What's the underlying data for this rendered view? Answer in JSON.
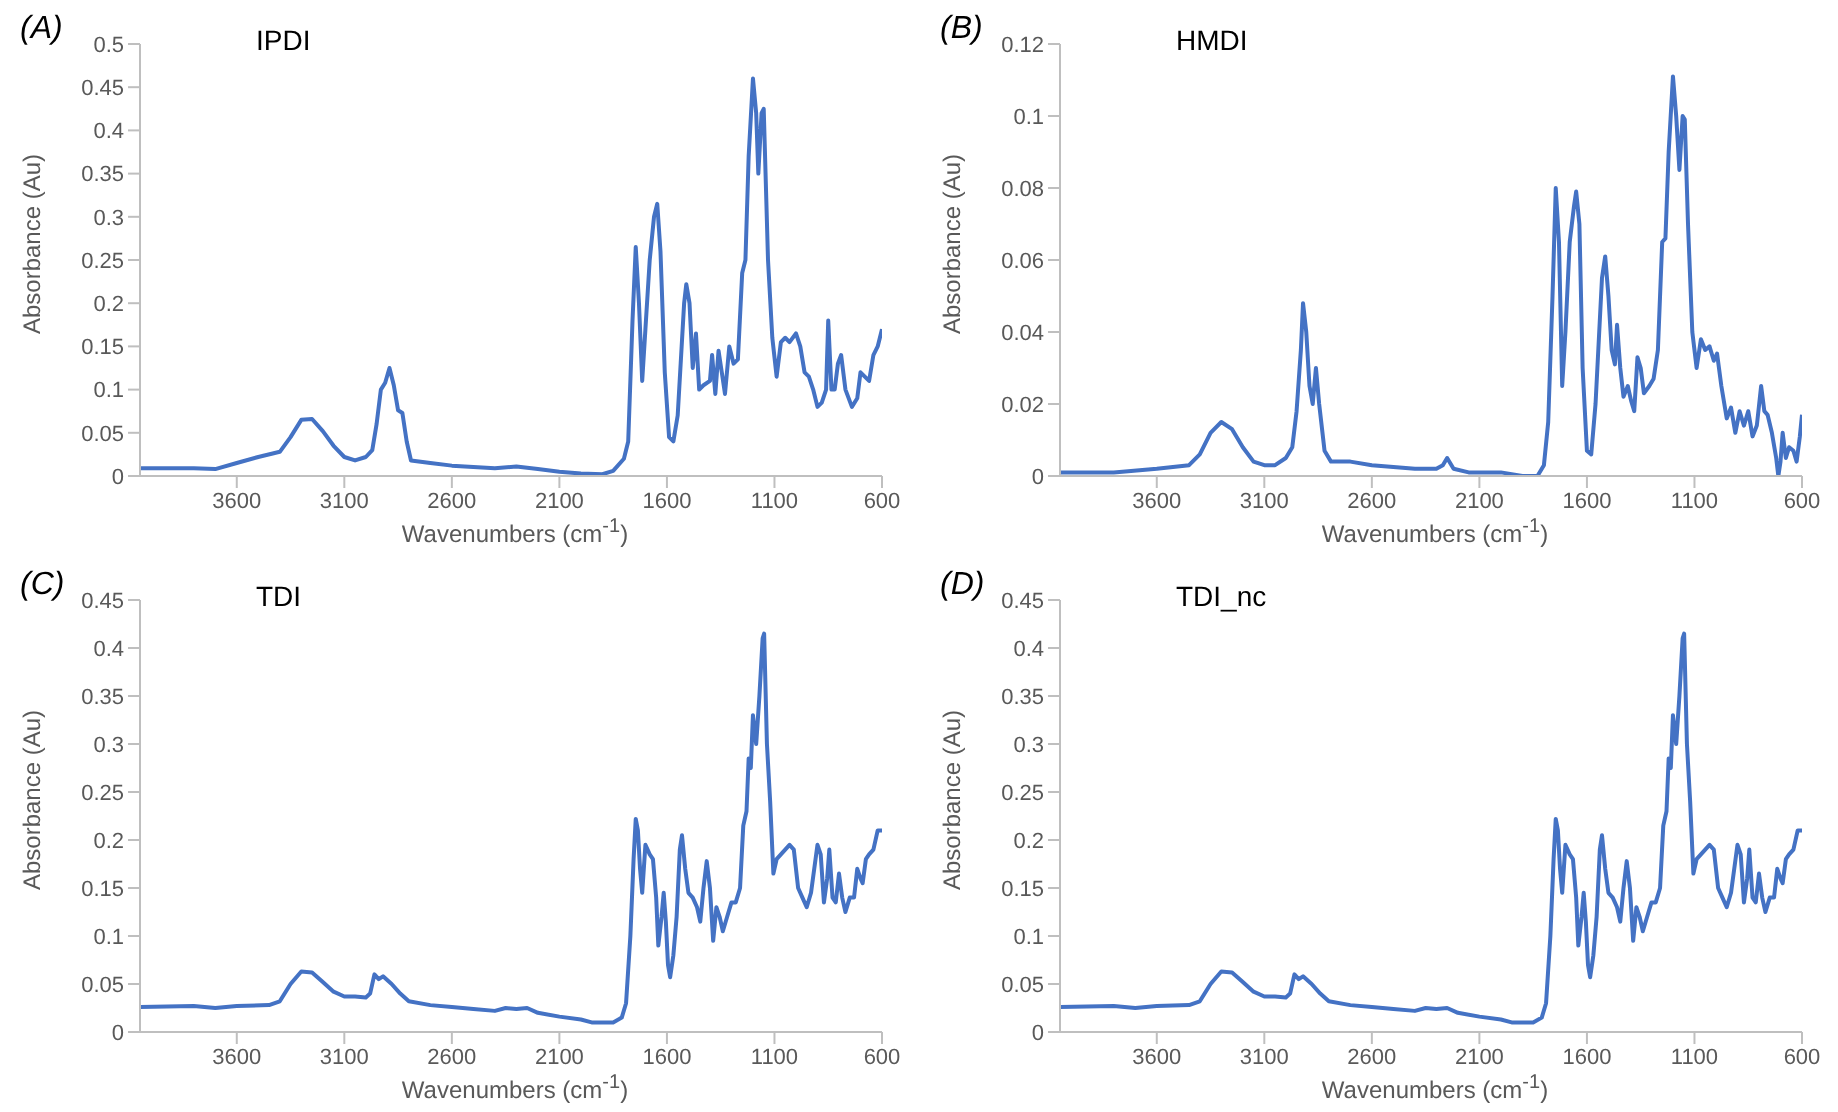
{
  "chart_data": [
    {
      "type": "line",
      "title": "(A)",
      "subtitle": "IPDI",
      "xlabel": "Wavenumbers (cm$^{-1}$)",
      "ylabel": "Absorbance (Au)",
      "xlim": [
        4050,
        600
      ],
      "xticks": [
        3600,
        3100,
        2600,
        2100,
        1600,
        1100,
        600
      ],
      "ylim": [
        0,
        0.5
      ],
      "yticks": [
        0,
        0.05,
        0.1,
        0.15,
        0.2,
        0.25,
        0.3,
        0.35,
        0.4,
        0.45,
        0.5
      ],
      "legend": false,
      "grid": false,
      "marker": "none",
      "x": [
        4050,
        3800,
        3700,
        3600,
        3500,
        3400,
        3350,
        3300,
        3250,
        3200,
        3150,
        3100,
        3050,
        3000,
        2970,
        2950,
        2930,
        2910,
        2890,
        2870,
        2850,
        2830,
        2810,
        2790,
        2700,
        2600,
        2400,
        2300,
        2200,
        2100,
        2000,
        1900,
        1850,
        1800,
        1780,
        1760,
        1745,
        1730,
        1715,
        1700,
        1680,
        1660,
        1645,
        1630,
        1610,
        1590,
        1570,
        1550,
        1520,
        1510,
        1495,
        1480,
        1465,
        1450,
        1430,
        1400,
        1390,
        1375,
        1360,
        1345,
        1330,
        1310,
        1290,
        1270,
        1250,
        1235,
        1220,
        1200,
        1185,
        1175,
        1160,
        1150,
        1130,
        1110,
        1090,
        1070,
        1050,
        1030,
        1000,
        980,
        960,
        940,
        920,
        900,
        880,
        860,
        850,
        835,
        820,
        805,
        790,
        770,
        740,
        715,
        700,
        680,
        660,
        640,
        620,
        600
      ],
      "series": [
        {
          "color": "#4472c4",
          "values": [
            0.009,
            0.009,
            0.008,
            0.015,
            0.022,
            0.028,
            0.045,
            0.065,
            0.066,
            0.052,
            0.035,
            0.022,
            0.018,
            0.022,
            0.03,
            0.06,
            0.1,
            0.108,
            0.125,
            0.105,
            0.076,
            0.073,
            0.04,
            0.018,
            0.015,
            0.012,
            0.009,
            0.011,
            0.008,
            0.005,
            0.003,
            0.002,
            0.006,
            0.02,
            0.04,
            0.18,
            0.265,
            0.2,
            0.11,
            0.17,
            0.25,
            0.3,
            0.315,
            0.26,
            0.12,
            0.045,
            0.04,
            0.07,
            0.2,
            0.222,
            0.2,
            0.125,
            0.165,
            0.1,
            0.105,
            0.11,
            0.14,
            0.095,
            0.145,
            0.12,
            0.095,
            0.15,
            0.13,
            0.135,
            0.235,
            0.25,
            0.37,
            0.46,
            0.42,
            0.35,
            0.42,
            0.425,
            0.25,
            0.16,
            0.115,
            0.155,
            0.16,
            0.155,
            0.165,
            0.15,
            0.12,
            0.115,
            0.1,
            0.08,
            0.085,
            0.1,
            0.18,
            0.1,
            0.1,
            0.13,
            0.14,
            0.1,
            0.08,
            0.09,
            0.12,
            0.115,
            0.11,
            0.14,
            0.15,
            0.17
          ]
        }
      ]
    },
    {
      "type": "line",
      "title": "(B)",
      "subtitle": "HMDI",
      "xlabel": "Wavenumbers (cm$^{-1}$)",
      "ylabel": "Absorbance (Au)",
      "xlim": [
        4050,
        600
      ],
      "xticks": [
        3600,
        3100,
        2600,
        2100,
        1600,
        1100,
        600
      ],
      "ylim": [
        0,
        0.12
      ],
      "yticks": [
        0,
        0.02,
        0.04,
        0.06,
        0.08,
        0.1,
        0.12
      ],
      "legend": false,
      "grid": false,
      "marker": "none",
      "x": [
        4050,
        3800,
        3600,
        3450,
        3400,
        3350,
        3300,
        3250,
        3200,
        3150,
        3100,
        3050,
        3000,
        2970,
        2950,
        2930,
        2920,
        2905,
        2890,
        2875,
        2860,
        2845,
        2820,
        2790,
        2700,
        2600,
        2400,
        2300,
        2270,
        2250,
        2220,
        2150,
        2000,
        1900,
        1830,
        1800,
        1780,
        1760,
        1745,
        1730,
        1715,
        1700,
        1680,
        1660,
        1650,
        1635,
        1620,
        1600,
        1580,
        1560,
        1530,
        1515,
        1500,
        1485,
        1470,
        1460,
        1445,
        1430,
        1410,
        1395,
        1380,
        1365,
        1350,
        1335,
        1310,
        1290,
        1270,
        1250,
        1235,
        1220,
        1200,
        1185,
        1170,
        1155,
        1145,
        1130,
        1110,
        1090,
        1070,
        1050,
        1030,
        1010,
        995,
        975,
        950,
        930,
        910,
        890,
        870,
        850,
        830,
        810,
        790,
        775,
        760,
        740,
        720,
        710,
        700,
        690,
        675,
        660,
        640,
        625,
        610,
        600
      ],
      "series": [
        {
          "color": "#4472c4",
          "values": [
            0.001,
            0.001,
            0.002,
            0.003,
            0.006,
            0.012,
            0.015,
            0.013,
            0.008,
            0.004,
            0.003,
            0.003,
            0.005,
            0.008,
            0.018,
            0.035,
            0.048,
            0.04,
            0.025,
            0.02,
            0.03,
            0.02,
            0.007,
            0.004,
            0.004,
            0.003,
            0.002,
            0.002,
            0.003,
            0.005,
            0.002,
            0.001,
            0.001,
            0,
            0,
            0.003,
            0.015,
            0.05,
            0.08,
            0.065,
            0.025,
            0.04,
            0.065,
            0.075,
            0.079,
            0.07,
            0.03,
            0.007,
            0.006,
            0.02,
            0.055,
            0.061,
            0.05,
            0.035,
            0.031,
            0.042,
            0.03,
            0.022,
            0.025,
            0.021,
            0.018,
            0.033,
            0.03,
            0.023,
            0.025,
            0.027,
            0.035,
            0.065,
            0.066,
            0.09,
            0.111,
            0.1,
            0.085,
            0.1,
            0.099,
            0.07,
            0.04,
            0.03,
            0.038,
            0.035,
            0.036,
            0.032,
            0.034,
            0.025,
            0.016,
            0.019,
            0.012,
            0.018,
            0.014,
            0.018,
            0.011,
            0.014,
            0.025,
            0.018,
            0.017,
            0.012,
            0.005,
            0,
            0.004,
            0.012,
            0.005,
            0.008,
            0.007,
            0.004,
            0.011,
            0.017
          ]
        }
      ]
    },
    {
      "type": "line",
      "title": "(C)",
      "subtitle": "TDI",
      "xlabel": "Wavenumbers (cm$^{-1}$)",
      "ylabel": "Absorbance (Au)",
      "xlim": [
        4050,
        600
      ],
      "xticks": [
        3600,
        3100,
        2600,
        2100,
        1600,
        1100,
        600
      ],
      "ylim": [
        0,
        0.45
      ],
      "yticks": [
        0,
        0.05,
        0.1,
        0.15,
        0.2,
        0.25,
        0.3,
        0.35,
        0.4,
        0.45
      ],
      "legend": false,
      "grid": false,
      "marker": "none",
      "x": [
        4050,
        3800,
        3700,
        3600,
        3450,
        3400,
        3350,
        3300,
        3250,
        3200,
        3150,
        3100,
        3050,
        3000,
        2980,
        2960,
        2940,
        2920,
        2880,
        2840,
        2800,
        2700,
        2600,
        2500,
        2400,
        2350,
        2300,
        2250,
        2200,
        2100,
        2000,
        1950,
        1850,
        1810,
        1790,
        1770,
        1755,
        1745,
        1735,
        1725,
        1715,
        1700,
        1680,
        1665,
        1650,
        1640,
        1625,
        1615,
        1605,
        1595,
        1585,
        1570,
        1555,
        1540,
        1530,
        1515,
        1500,
        1480,
        1460,
        1445,
        1430,
        1415,
        1400,
        1385,
        1370,
        1355,
        1340,
        1320,
        1300,
        1280,
        1260,
        1245,
        1230,
        1220,
        1210,
        1200,
        1185,
        1170,
        1155,
        1148,
        1135,
        1120,
        1105,
        1090,
        1070,
        1050,
        1030,
        1010,
        990,
        970,
        950,
        930,
        900,
        885,
        870,
        855,
        845,
        830,
        815,
        800,
        785,
        770,
        750,
        730,
        715,
        700,
        690,
        675,
        660,
        640,
        620,
        600
      ],
      "series": [
        {
          "color": "#4472c4",
          "values": [
            0.026,
            0.027,
            0.025,
            0.027,
            0.028,
            0.032,
            0.05,
            0.063,
            0.062,
            0.052,
            0.042,
            0.037,
            0.037,
            0.036,
            0.04,
            0.06,
            0.055,
            0.058,
            0.05,
            0.04,
            0.032,
            0.028,
            0.026,
            0.024,
            0.022,
            0.025,
            0.024,
            0.025,
            0.02,
            0.016,
            0.013,
            0.01,
            0.01,
            0.015,
            0.03,
            0.1,
            0.18,
            0.222,
            0.21,
            0.17,
            0.145,
            0.195,
            0.185,
            0.18,
            0.14,
            0.09,
            0.12,
            0.145,
            0.115,
            0.07,
            0.057,
            0.08,
            0.12,
            0.19,
            0.205,
            0.17,
            0.145,
            0.14,
            0.13,
            0.115,
            0.15,
            0.178,
            0.15,
            0.095,
            0.13,
            0.12,
            0.105,
            0.12,
            0.135,
            0.135,
            0.15,
            0.215,
            0.23,
            0.285,
            0.275,
            0.33,
            0.3,
            0.35,
            0.41,
            0.415,
            0.3,
            0.24,
            0.165,
            0.18,
            0.185,
            0.19,
            0.195,
            0.19,
            0.15,
            0.14,
            0.13,
            0.145,
            0.195,
            0.185,
            0.135,
            0.16,
            0.19,
            0.14,
            0.135,
            0.165,
            0.14,
            0.125,
            0.14,
            0.14,
            0.17,
            0.16,
            0.155,
            0.18,
            0.185,
            0.19,
            0.21,
            0.21
          ]
        }
      ]
    },
    {
      "type": "line",
      "title": "(D)",
      "subtitle": "TDI_nc",
      "xlabel": "Wavenumbers (cm$^{-1}$)",
      "ylabel": "Absorbance (Au)",
      "xlim": [
        4050,
        600
      ],
      "xticks": [
        3600,
        3100,
        2600,
        2100,
        1600,
        1100,
        600
      ],
      "ylim": [
        0,
        0.45
      ],
      "yticks": [
        0,
        0.05,
        0.1,
        0.15,
        0.2,
        0.25,
        0.3,
        0.35,
        0.4,
        0.45
      ],
      "legend": false,
      "grid": false,
      "marker": "none",
      "x": [
        4050,
        3800,
        3700,
        3600,
        3450,
        3400,
        3350,
        3300,
        3250,
        3200,
        3150,
        3100,
        3050,
        3000,
        2980,
        2960,
        2940,
        2920,
        2880,
        2840,
        2800,
        2700,
        2600,
        2500,
        2400,
        2350,
        2300,
        2250,
        2200,
        2100,
        2000,
        1950,
        1850,
        1810,
        1790,
        1770,
        1755,
        1745,
        1735,
        1725,
        1715,
        1700,
        1680,
        1665,
        1650,
        1640,
        1625,
        1615,
        1605,
        1595,
        1585,
        1570,
        1555,
        1540,
        1530,
        1515,
        1500,
        1480,
        1460,
        1445,
        1430,
        1415,
        1400,
        1385,
        1370,
        1355,
        1340,
        1320,
        1300,
        1280,
        1260,
        1245,
        1230,
        1220,
        1210,
        1200,
        1185,
        1170,
        1155,
        1148,
        1135,
        1120,
        1105,
        1090,
        1070,
        1050,
        1030,
        1010,
        990,
        970,
        950,
        930,
        900,
        885,
        870,
        855,
        845,
        830,
        815,
        800,
        785,
        770,
        750,
        730,
        715,
        700,
        690,
        675,
        660,
        640,
        620,
        600
      ],
      "series": [
        {
          "color": "#4472c4",
          "values": [
            0.026,
            0.027,
            0.025,
            0.027,
            0.028,
            0.032,
            0.05,
            0.063,
            0.062,
            0.052,
            0.042,
            0.037,
            0.037,
            0.036,
            0.04,
            0.06,
            0.055,
            0.058,
            0.05,
            0.04,
            0.032,
            0.028,
            0.026,
            0.024,
            0.022,
            0.025,
            0.024,
            0.025,
            0.02,
            0.016,
            0.013,
            0.01,
            0.01,
            0.015,
            0.03,
            0.1,
            0.18,
            0.222,
            0.21,
            0.17,
            0.145,
            0.195,
            0.185,
            0.18,
            0.14,
            0.09,
            0.12,
            0.145,
            0.115,
            0.07,
            0.057,
            0.08,
            0.12,
            0.19,
            0.205,
            0.17,
            0.145,
            0.14,
            0.13,
            0.115,
            0.15,
            0.178,
            0.15,
            0.095,
            0.13,
            0.12,
            0.105,
            0.12,
            0.135,
            0.135,
            0.15,
            0.215,
            0.23,
            0.285,
            0.275,
            0.33,
            0.3,
            0.35,
            0.41,
            0.415,
            0.3,
            0.24,
            0.165,
            0.18,
            0.185,
            0.19,
            0.195,
            0.19,
            0.15,
            0.14,
            0.13,
            0.145,
            0.195,
            0.185,
            0.135,
            0.16,
            0.19,
            0.14,
            0.135,
            0.165,
            0.14,
            0.125,
            0.14,
            0.14,
            0.17,
            0.16,
            0.155,
            0.18,
            0.185,
            0.19,
            0.21,
            0.21
          ]
        }
      ]
    }
  ]
}
